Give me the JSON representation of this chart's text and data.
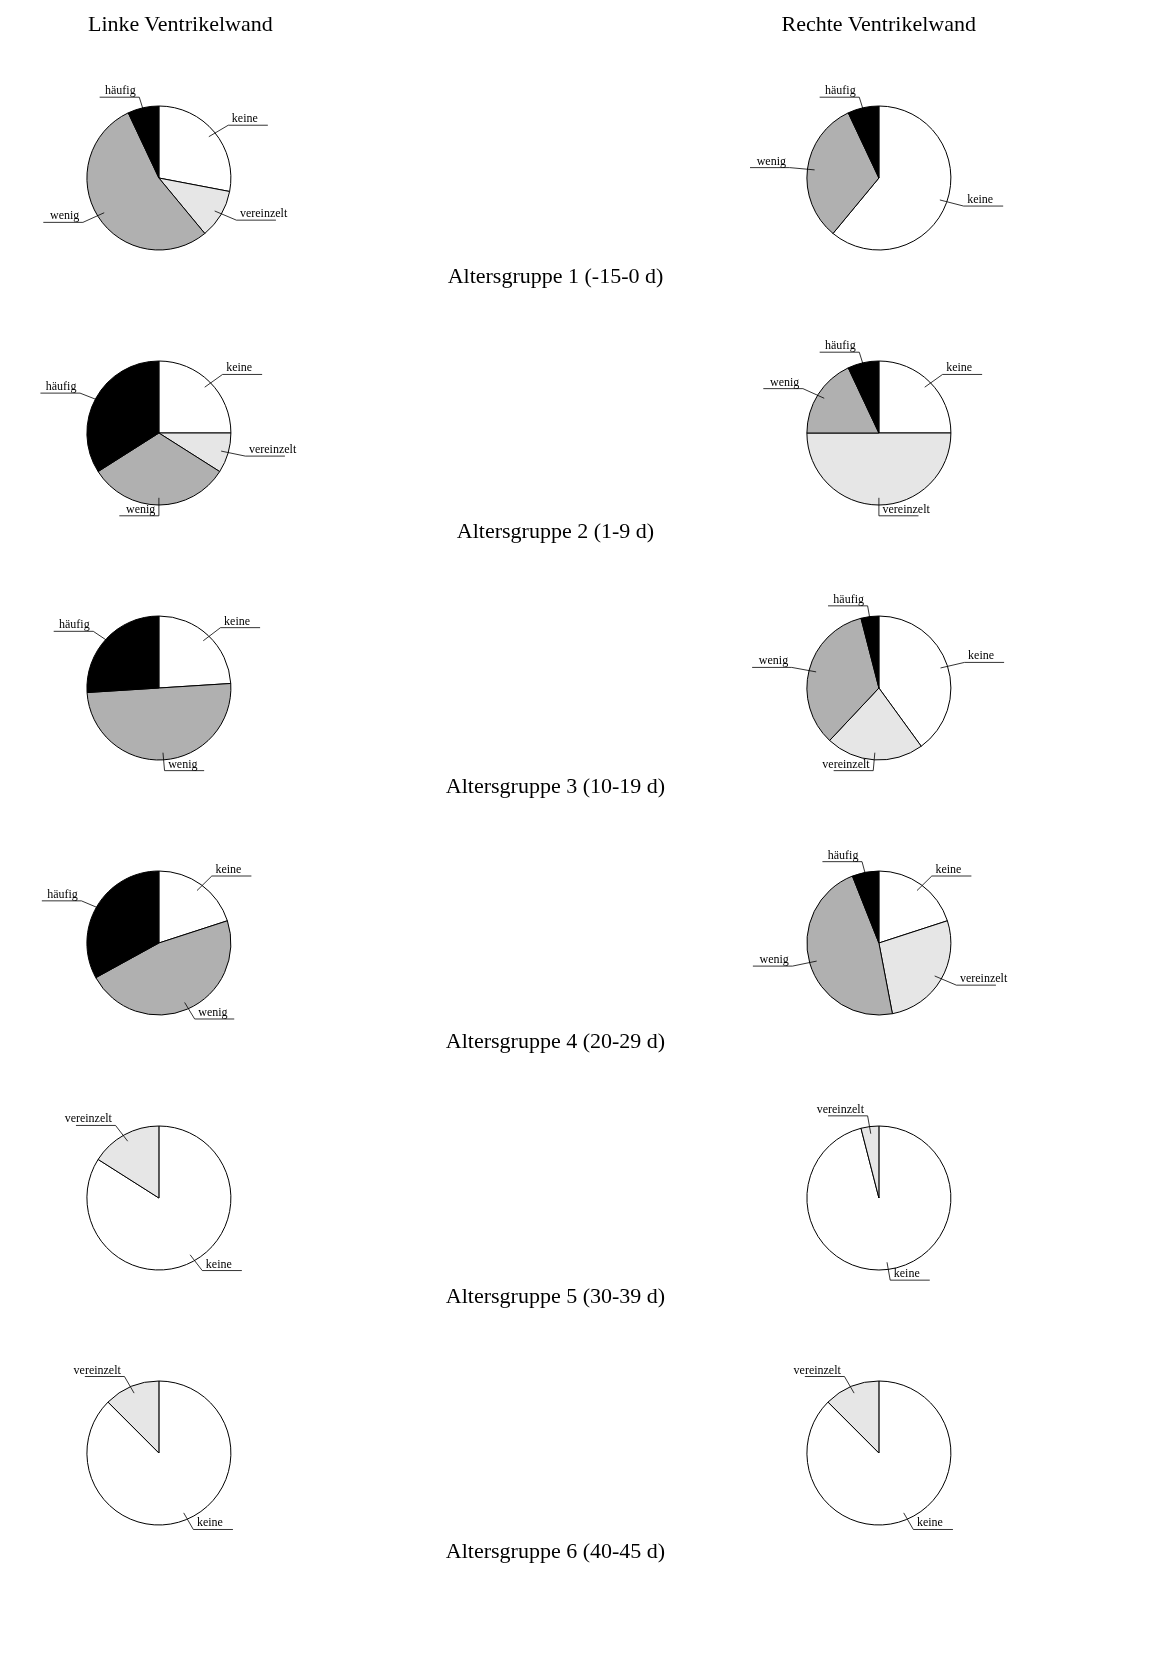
{
  "chart_data": [
    {
      "type": "pie",
      "title": "Linke Ventrikelwand",
      "categories": [
        "keine",
        "vereinzelt",
        "wenig",
        "häufig"
      ],
      "values": [
        28,
        11,
        54,
        7
      ],
      "colors": [
        "#ffffff",
        "#e6e6e6",
        "#b0b0b0",
        "#000000"
      ],
      "annotations": [
        "Altersgruppe 1 (-15-0 d)"
      ]
    },
    {
      "type": "pie",
      "title": "Rechte Ventrikelwand",
      "categories": [
        "keine",
        "wenig",
        "häufig"
      ],
      "values": [
        61,
        32,
        7
      ],
      "colors": [
        "#ffffff",
        "#b0b0b0",
        "#000000"
      ]
    },
    {
      "type": "pie",
      "categories": [
        "keine",
        "vereinzelt",
        "wenig",
        "häufig"
      ],
      "values": [
        25,
        9,
        32,
        34
      ],
      "colors": [
        "#ffffff",
        "#e6e6e6",
        "#b0b0b0",
        "#000000"
      ],
      "annotations": [
        "Altersgruppe 2 (1-9 d)"
      ]
    },
    {
      "type": "pie",
      "categories": [
        "keine",
        "vereinzelt",
        "wenig",
        "häufig"
      ],
      "values": [
        25,
        50,
        18,
        7
      ],
      "colors": [
        "#ffffff",
        "#e6e6e6",
        "#b0b0b0",
        "#000000"
      ]
    },
    {
      "type": "pie",
      "categories": [
        "keine",
        "wenig",
        "häufig"
      ],
      "values": [
        24,
        50,
        26
      ],
      "colors": [
        "#ffffff",
        "#b0b0b0",
        "#000000"
      ],
      "annotations": [
        "Altersgruppe 3 (10-19 d)"
      ]
    },
    {
      "type": "pie",
      "categories": [
        "keine",
        "vereinzelt",
        "wenig",
        "häufig"
      ],
      "values": [
        40,
        22,
        34,
        4
      ],
      "colors": [
        "#ffffff",
        "#e6e6e6",
        "#b0b0b0",
        "#000000"
      ]
    },
    {
      "type": "pie",
      "categories": [
        "keine",
        "wenig",
        "häufig"
      ],
      "values": [
        20,
        47,
        33
      ],
      "colors": [
        "#ffffff",
        "#b0b0b0",
        "#000000"
      ],
      "annotations": [
        "Altersgruppe 4 (20-29 d)"
      ]
    },
    {
      "type": "pie",
      "categories": [
        "keine",
        "vereinzelt",
        "wenig",
        "häufig"
      ],
      "values": [
        20,
        27,
        47,
        6
      ],
      "colors": [
        "#ffffff",
        "#e6e6e6",
        "#b0b0b0",
        "#000000"
      ]
    },
    {
      "type": "pie",
      "categories": [
        "keine",
        "vereinzelt"
      ],
      "values": [
        84,
        16
      ],
      "colors": [
        "#ffffff",
        "#e6e6e6"
      ],
      "annotations": [
        "Altersgruppe 5 (30-39 d)"
      ]
    },
    {
      "type": "pie",
      "categories": [
        "keine",
        "vereinzelt"
      ],
      "values": [
        96,
        4
      ],
      "colors": [
        "#ffffff",
        "#e6e6e6"
      ]
    },
    {
      "type": "pie",
      "categories": [
        "keine",
        "vereinzelt"
      ],
      "values": [
        87.5,
        12.5
      ],
      "colors": [
        "#ffffff",
        "#e6e6e6"
      ],
      "annotations": [
        "Altersgruppe 6 (40-45 d)"
      ]
    },
    {
      "type": "pie",
      "categories": [
        "keine",
        "vereinzelt"
      ],
      "values": [
        87.5,
        12.5
      ],
      "colors": [
        "#ffffff",
        "#e6e6e6"
      ]
    }
  ]
}
